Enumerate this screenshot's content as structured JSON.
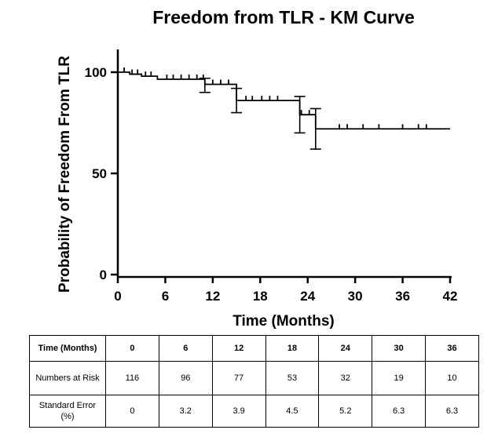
{
  "chart_data": {
    "type": "line",
    "title": "Freedom from TLR - KM Curve",
    "xlabel": "Time (Months)",
    "ylabel": "Probability of Freedom From TLR",
    "xlim": [
      0,
      42
    ],
    "ylim": [
      0,
      100
    ],
    "xticks": [
      0,
      6,
      12,
      18,
      24,
      30,
      36,
      42
    ],
    "yticks": [
      0,
      50,
      100
    ],
    "step": [
      {
        "x": 0,
        "y": 100
      },
      {
        "x": 1.5,
        "y": 99
      },
      {
        "x": 3,
        "y": 98
      },
      {
        "x": 5,
        "y": 96.5
      },
      {
        "x": 11,
        "y": 94
      },
      {
        "x": 15,
        "y": 86
      },
      {
        "x": 23,
        "y": 79
      },
      {
        "x": 25,
        "y": 72
      },
      {
        "x": 42,
        "y": 72
      }
    ],
    "censored": [
      0.8,
      1.8,
      2.5,
      3.5,
      4.2,
      6.2,
      7.0,
      8.0,
      9.0,
      10.0,
      10.8,
      12.0,
      13.0,
      14.0,
      16.2,
      17.0,
      18.2,
      19.2,
      20.2,
      23.2,
      24.2,
      28.0,
      29.0,
      31.0,
      33.0,
      36.0,
      38.0,
      39.0
    ],
    "error_bars": [
      {
        "x": 11,
        "y": 94,
        "low": 90,
        "high": 97
      },
      {
        "x": 15,
        "y": 86,
        "low": 80,
        "high": 92
      },
      {
        "x": 23,
        "y": 79,
        "low": 70,
        "high": 88
      },
      {
        "x": 25,
        "y": 72,
        "low": 62,
        "high": 82
      }
    ],
    "grid": false,
    "legend": "none"
  },
  "risk_table": {
    "header_label": "Time (Months)",
    "times": [
      "0",
      "6",
      "12",
      "18",
      "24",
      "30",
      "36"
    ],
    "rows": [
      {
        "label": "Numbers at Risk",
        "values": [
          "116",
          "96",
          "77",
          "53",
          "32",
          "19",
          "10"
        ]
      },
      {
        "label": "Standard Error (%)",
        "values": [
          "0",
          "3.2",
          "3.9",
          "4.5",
          "5.2",
          "6.3",
          "6.3"
        ]
      }
    ]
  }
}
